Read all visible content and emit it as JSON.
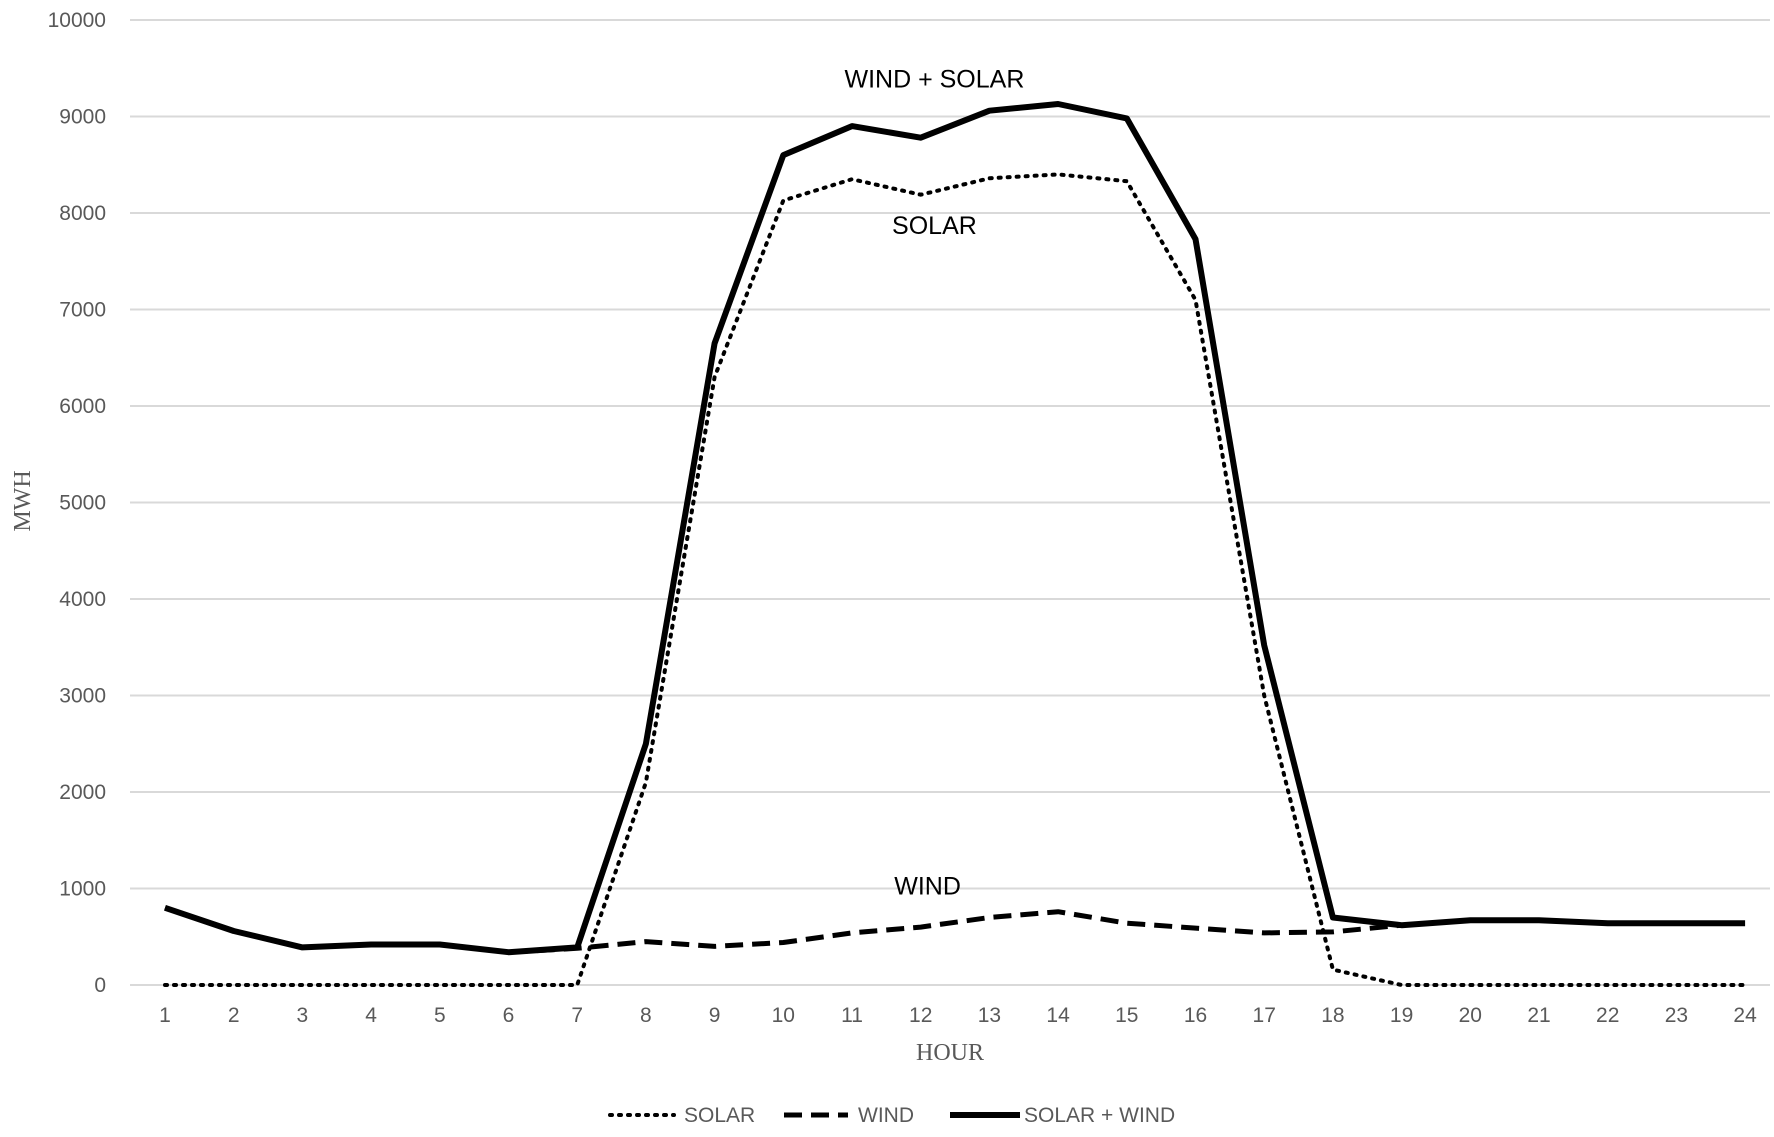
{
  "chart_data": {
    "type": "line",
    "title": "",
    "xlabel": "HOUR",
    "ylabel": "MWH",
    "x": [
      1,
      2,
      3,
      4,
      5,
      6,
      7,
      8,
      9,
      10,
      11,
      12,
      13,
      14,
      15,
      16,
      17,
      18,
      19,
      20,
      21,
      22,
      23,
      24
    ],
    "ylim": [
      0,
      10000
    ],
    "yticks": [
      0,
      1000,
      2000,
      3000,
      4000,
      5000,
      6000,
      7000,
      8000,
      9000,
      10000
    ],
    "grid": true,
    "legend_position": "bottom",
    "series": [
      {
        "name": "SOLAR",
        "style": "dotted",
        "color": "#000000",
        "values": [
          0,
          0,
          0,
          0,
          0,
          0,
          0,
          2100,
          6300,
          8130,
          8350,
          8190,
          8360,
          8400,
          8330,
          7100,
          3000,
          160,
          0,
          0,
          0,
          0,
          0,
          0
        ]
      },
      {
        "name": "WIND",
        "style": "dashed",
        "color": "#000000",
        "values": [
          800,
          560,
          390,
          420,
          420,
          340,
          380,
          450,
          400,
          440,
          540,
          600,
          700,
          760,
          640,
          590,
          540,
          550,
          620,
          670,
          670,
          640,
          640,
          640
        ]
      },
      {
        "name": "SOLAR + WIND",
        "style": "solid",
        "color": "#000000",
        "values": [
          800,
          560,
          390,
          420,
          420,
          340,
          390,
          2500,
          6650,
          8600,
          8900,
          8780,
          9060,
          9130,
          8980,
          7730,
          3520,
          700,
          620,
          670,
          670,
          640,
          640,
          640
        ]
      }
    ],
    "annotations": [
      {
        "text": "WIND + SOLAR",
        "x": 12.2,
        "y": 9300
      },
      {
        "text": "SOLAR",
        "x": 12.2,
        "y": 7780
      },
      {
        "text": "WIND",
        "x": 12.1,
        "y": 940
      }
    ]
  }
}
